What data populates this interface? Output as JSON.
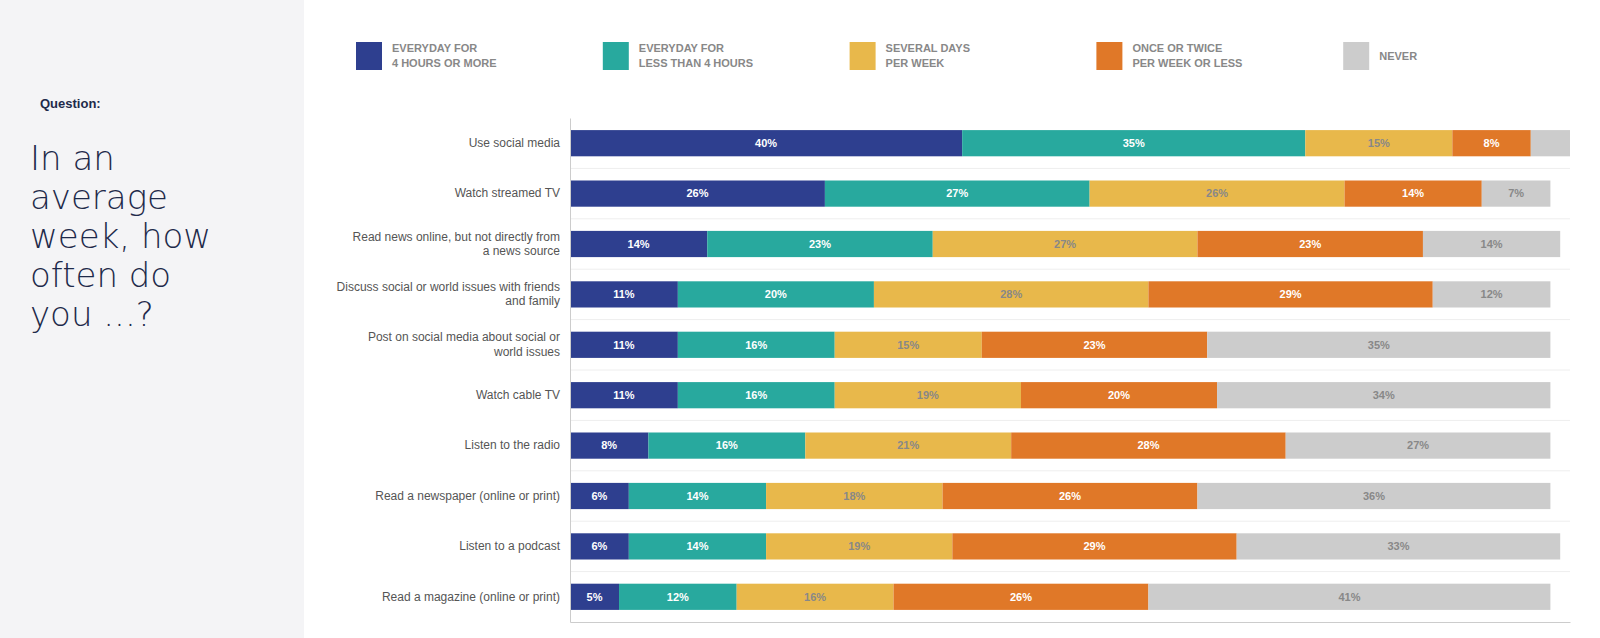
{
  "chart_data": {
    "type": "bar",
    "orientation": "horizontal",
    "stacked": true,
    "title": "Question:",
    "subtitle": "In an\naverage\nweek, how\noften do\nyou ...?",
    "categories": [
      "Use social media",
      "Watch streamed TV",
      "Read news online, but not directly from\na news source",
      "Discuss social or world issues with friends\nand family",
      "Post on social media about social or\nworld issues",
      "Watch cable TV",
      "Listen to the radio",
      "Read a newspaper (online or print)",
      "Listen to a podcast",
      "Read a magazine (online or print)"
    ],
    "series": [
      {
        "name": "EVERYDAY FOR\n4 HOURS OR MORE",
        "color": "#2e3f8f",
        "values": [
          40,
          26,
          14,
          11,
          11,
          11,
          8,
          6,
          6,
          5
        ],
        "value_labels": [
          "40%",
          "26%",
          "14%",
          "11%",
          "11%",
          "11%",
          "8%",
          "6%",
          "6%",
          "5%"
        ]
      },
      {
        "name": "EVERYDAY FOR\nLESS THAN 4 HOURS",
        "color": "#28a99e",
        "values": [
          35,
          27,
          23,
          20,
          16,
          16,
          16,
          14,
          14,
          12
        ],
        "value_labels": [
          "35%",
          "27%",
          "23%",
          "20%",
          "16%",
          "16%",
          "16%",
          "14%",
          "14%",
          "12%"
        ]
      },
      {
        "name": "SEVERAL DAYS\nPER WEEK",
        "color": "#e8b84b",
        "values": [
          15,
          26,
          27,
          28,
          15,
          19,
          21,
          18,
          19,
          16
        ],
        "value_labels": [
          "15%",
          "26%",
          "27%",
          "28%",
          "15%",
          "19%",
          "21%",
          "18%",
          "19%",
          "16%"
        ]
      },
      {
        "name": "ONCE OR TWICE\nPER WEEK OR LESS",
        "color": "#e07828",
        "values": [
          8,
          14,
          23,
          29,
          23,
          20,
          28,
          26,
          29,
          26
        ],
        "value_labels": [
          "8%",
          "14%",
          "23%",
          "29%",
          "23%",
          "20%",
          "28%",
          "26%",
          "29%",
          "26%"
        ]
      },
      {
        "name": "NEVER",
        "color": "#cccccc",
        "values": [
          4,
          7,
          14,
          12,
          35,
          34,
          27,
          36,
          33,
          41
        ],
        "value_labels": [
          null,
          "7%",
          "14%",
          "12%",
          "35%",
          "34%",
          "27%",
          "36%",
          "33%",
          "41%"
        ]
      }
    ],
    "xlim": [
      0,
      102
    ],
    "data_labels": true,
    "tick_labels": "y",
    "legend": "top"
  }
}
